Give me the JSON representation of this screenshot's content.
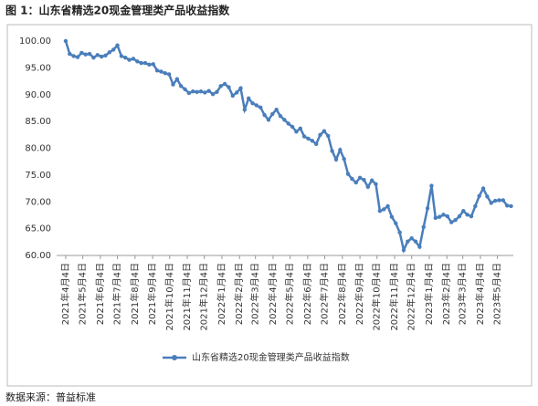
{
  "title": "图 1：山东省精选20现金管理类产品收益指数",
  "source": "数据来源：普益标准",
  "chart_data": {
    "type": "line",
    "x": [
      0,
      7,
      14,
      21,
      28,
      35,
      42,
      49,
      56,
      63,
      70,
      77,
      84,
      91,
      98,
      105,
      112,
      119,
      126,
      133,
      140,
      147,
      154,
      161,
      168,
      175,
      182,
      189,
      196,
      203,
      210,
      217,
      224,
      231,
      238,
      245,
      252,
      259,
      266,
      273,
      280,
      287,
      294,
      301,
      308,
      315,
      322,
      329,
      336,
      343,
      350,
      357,
      364,
      371,
      378,
      385,
      392,
      399,
      406,
      413,
      420,
      427,
      434,
      441,
      448,
      455,
      462,
      469,
      476,
      483,
      490,
      497,
      504,
      511,
      518,
      525,
      532,
      539,
      546,
      553,
      560,
      567,
      574,
      581,
      588,
      595,
      602,
      609,
      616,
      623,
      630,
      637,
      644,
      651,
      658,
      665,
      672,
      679,
      686,
      693,
      700,
      707,
      714,
      721,
      728,
      735,
      742,
      749,
      756,
      763,
      770,
      777,
      784
    ],
    "series": [
      {
        "name": "山东省精选20现金管理类产品收益指数",
        "color": "#4a7ebb",
        "values": [
          100.0,
          97.6,
          97.2,
          97.0,
          97.8,
          97.5,
          97.6,
          96.9,
          97.4,
          97.1,
          97.3,
          97.9,
          98.4,
          99.2,
          97.2,
          96.9,
          96.5,
          96.7,
          96.2,
          95.9,
          95.9,
          95.6,
          95.7,
          94.5,
          94.3,
          94.0,
          93.8,
          91.9,
          92.9,
          91.6,
          91.0,
          90.3,
          90.6,
          90.5,
          90.6,
          90.4,
          90.7,
          90.1,
          90.5,
          91.6,
          92.0,
          91.4,
          89.8,
          90.4,
          91.2,
          87.2,
          89.3,
          88.4,
          88.0,
          87.6,
          86.2,
          85.3,
          86.4,
          87.2,
          86.0,
          85.3,
          84.6,
          84.0,
          83.1,
          83.7,
          82.2,
          81.8,
          81.4,
          80.8,
          82.5,
          83.2,
          82.3,
          79.5,
          77.9,
          79.7,
          78.0,
          75.2,
          74.3,
          73.6,
          74.5,
          74.1,
          72.8,
          74.0,
          73.3,
          68.3,
          68.6,
          69.2,
          67.2,
          66.0,
          64.3,
          61.0,
          62.6,
          63.2,
          62.6,
          61.6,
          65.3,
          68.8,
          73.0,
          67.0,
          67.2,
          67.6,
          67.3,
          66.2,
          66.6,
          67.3,
          68.3,
          67.6,
          67.3,
          69.2,
          71.1,
          72.5,
          71.0,
          69.8,
          70.2,
          70.3,
          70.3,
          69.3,
          69.2
        ]
      }
    ],
    "xlim": [
      -16,
      788
    ],
    "xticks": [
      {
        "value": 0,
        "label": "2021年4月4日"
      },
      {
        "value": 30,
        "label": "2021年5月4日"
      },
      {
        "value": 61,
        "label": "2021年6月4日"
      },
      {
        "value": 91,
        "label": "2021年7月4日"
      },
      {
        "value": 122,
        "label": "2021年8月4日"
      },
      {
        "value": 153,
        "label": "2021年9月4日"
      },
      {
        "value": 183,
        "label": "2021年10月4日"
      },
      {
        "value": 214,
        "label": "2021年11月4日"
      },
      {
        "value": 244,
        "label": "2021年12月4日"
      },
      {
        "value": 275,
        "label": "2022年1月4日"
      },
      {
        "value": 306,
        "label": "2022年2月4日"
      },
      {
        "value": 334,
        "label": "2022年3月4日"
      },
      {
        "value": 365,
        "label": "2022年4月4日"
      },
      {
        "value": 395,
        "label": "2022年5月4日"
      },
      {
        "value": 426,
        "label": "2022年6月4日"
      },
      {
        "value": 456,
        "label": "2022年7月4日"
      },
      {
        "value": 487,
        "label": "2022年8月4日"
      },
      {
        "value": 518,
        "label": "2022年9月4日"
      },
      {
        "value": 548,
        "label": "2022年10月4日"
      },
      {
        "value": 579,
        "label": "2022年11月4日"
      },
      {
        "value": 609,
        "label": "2022年12月4日"
      },
      {
        "value": 640,
        "label": "2023年1月4日"
      },
      {
        "value": 671,
        "label": "2023年2月4日"
      },
      {
        "value": 699,
        "label": "2023年3月4日"
      },
      {
        "value": 730,
        "label": "2023年4月4日"
      },
      {
        "value": 760,
        "label": "2023年5月4日"
      }
    ],
    "ylim": [
      60,
      100
    ],
    "yticks": [
      {
        "value": 60,
        "label": "60.00"
      },
      {
        "value": 65,
        "label": "65.00"
      },
      {
        "value": 70,
        "label": "70.00"
      },
      {
        "value": 75,
        "label": "75.00"
      },
      {
        "value": 80,
        "label": "80.00"
      },
      {
        "value": 85,
        "label": "85.00"
      },
      {
        "value": 90,
        "label": "90.00"
      },
      {
        "value": 95,
        "label": "95.00"
      },
      {
        "value": 100,
        "label": "100.00"
      }
    ],
    "grid": false
  }
}
